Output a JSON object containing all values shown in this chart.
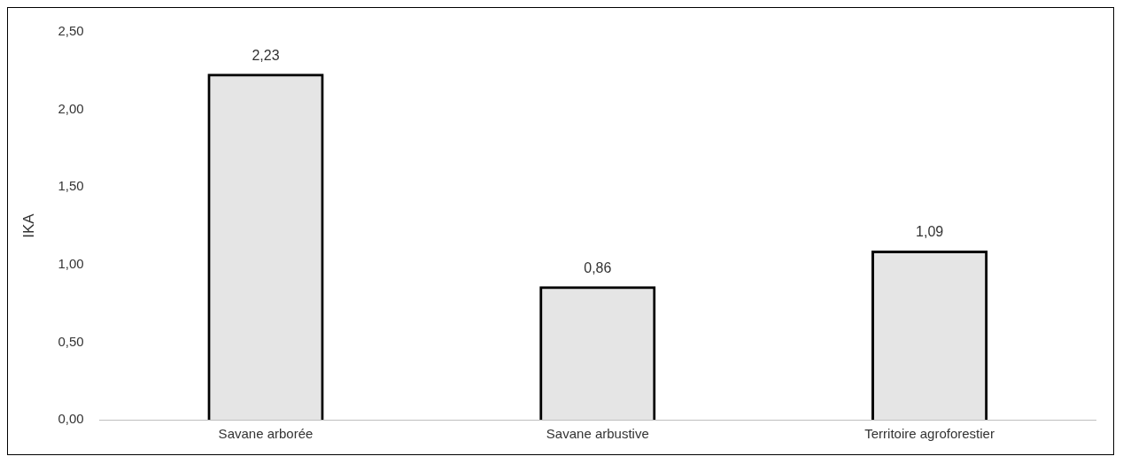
{
  "chart_data": {
    "type": "bar",
    "ylabel": "IKA",
    "categories": [
      "Savane arborée",
      "Savane arbustive",
      "Territoire agroforestier"
    ],
    "values": [
      2.23,
      0.86,
      1.09
    ],
    "value_labels": [
      "2,23",
      "0,86",
      "1,09"
    ],
    "color": "#000000",
    "ylim": [
      0,
      2.5
    ],
    "yticks": [
      {
        "value": 0,
        "label": "0,00"
      },
      {
        "value": 0.5,
        "label": "0,50"
      },
      {
        "value": 1,
        "label": "1,00"
      },
      {
        "value": 1.5,
        "label": "1,50"
      },
      {
        "value": 2,
        "label": "2,00"
      },
      {
        "value": 2.5,
        "label": "2,50"
      }
    ],
    "grid": false,
    "legend": false
  }
}
